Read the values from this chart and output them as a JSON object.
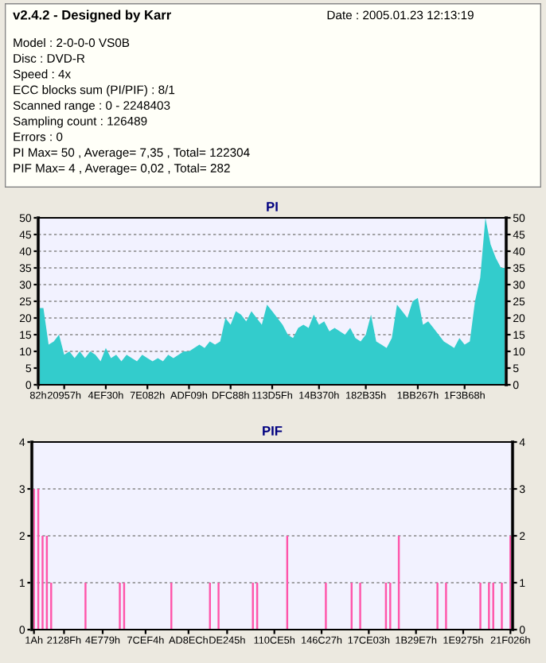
{
  "chart_data": [
    {
      "type": "other",
      "title": "v2.4.2 - Designed by Karr",
      "annotations": [
        "Date : 2005.01.23 12:13:19",
        "Model : 2-0-0-0 VS0B",
        "Disc : DVD-R",
        "Speed : 4x",
        "ECC blocks sum (PI/PIF) : 8/1",
        "Scanned range : 0 - 2248403",
        "Sampling count : 126489",
        "Errors : 0",
        "PI Max= 50 , Average= 7,35 , Total= 122304",
        "PIF Max= 4 , Average= 0,02 , Total= 282"
      ]
    },
    {
      "type": "area",
      "title": "PI",
      "color": "#33cccc",
      "grid": "y",
      "categories": [
        "82h",
        null,
        null,
        null,
        null,
        "20957h",
        null,
        null,
        null,
        null,
        null,
        null,
        null,
        "4EF30h",
        null,
        null,
        null,
        null,
        null,
        null,
        null,
        "7E082h",
        null,
        null,
        null,
        null,
        null,
        null,
        null,
        "ADF09h",
        null,
        null,
        null,
        null,
        null,
        null,
        null,
        "DFC88h",
        null,
        null,
        null,
        null,
        null,
        null,
        null,
        "113D5Fh",
        null,
        null,
        null,
        null,
        null,
        null,
        null,
        null,
        "14B370h",
        null,
        null,
        null,
        null,
        null,
        null,
        null,
        null,
        "182B35h",
        null,
        null,
        null,
        null,
        null,
        null,
        null,
        null,
        null,
        "1BB267h",
        null,
        null,
        null,
        null,
        null,
        null,
        null,
        null,
        "1F3B68h",
        null,
        null,
        null,
        null,
        null,
        null,
        null,
        null
      ],
      "values": [
        23,
        23,
        12,
        13,
        15,
        9,
        10,
        8,
        10,
        8,
        10,
        9,
        7,
        11,
        8,
        9,
        7,
        9,
        8,
        7,
        9,
        8,
        7,
        8,
        7,
        9,
        8,
        9,
        10,
        10,
        11,
        12,
        11,
        13,
        12,
        13,
        20,
        18,
        22,
        21,
        19,
        22,
        20,
        18,
        24,
        22,
        20,
        18,
        15,
        14,
        17,
        18,
        17,
        21,
        18,
        19,
        16,
        17,
        16,
        15,
        17,
        14,
        13,
        15,
        21,
        13,
        12,
        11,
        14,
        24,
        22,
        20,
        25,
        26,
        18,
        19,
        17,
        15,
        13,
        12,
        11,
        14,
        12,
        13,
        25,
        32,
        50,
        42,
        38,
        35,
        35
      ],
      "ylim": [
        0,
        50
      ],
      "y2lim": [
        0,
        50
      ],
      "yticks": [
        0,
        5,
        10,
        15,
        20,
        25,
        30,
        35,
        40,
        45,
        50
      ],
      "y2ticks": [
        0,
        5,
        10,
        15,
        20,
        25,
        30,
        35,
        40,
        45,
        50
      ]
    },
    {
      "type": "bar",
      "title": "PIF",
      "color": "#ff55aa",
      "grid": "y",
      "categories": [
        "1Ah",
        null,
        null,
        null,
        null,
        null,
        null,
        "2128Fh",
        null,
        null,
        null,
        null,
        null,
        null,
        null,
        null,
        "4E779h",
        null,
        null,
        null,
        null,
        null,
        null,
        null,
        null,
        null,
        "7CEF4h",
        null,
        null,
        null,
        null,
        null,
        null,
        null,
        null,
        null,
        "AD8ECh",
        null,
        null,
        null,
        null,
        null,
        null,
        null,
        null,
        "DE245h",
        null,
        null,
        null,
        null,
        null,
        null,
        null,
        null,
        null,
        null,
        "110CE5h",
        null,
        null,
        null,
        null,
        null,
        null,
        null,
        null,
        null,
        null,
        "146C27h",
        null,
        null,
        null,
        null,
        null,
        null,
        null,
        null,
        null,
        null,
        "17CE03h",
        null,
        null,
        null,
        null,
        null,
        null,
        null,
        null,
        null,
        null,
        "1B29E7h",
        null,
        null,
        null,
        null,
        null,
        null,
        null,
        null,
        null,
        null,
        "1E9275h",
        null,
        null,
        null,
        null,
        null,
        null,
        null,
        null,
        null,
        null,
        "21F026h"
      ],
      "values": [
        3,
        3,
        2,
        2,
        1,
        null,
        null,
        null,
        null,
        null,
        null,
        null,
        1,
        null,
        null,
        null,
        null,
        null,
        null,
        null,
        1,
        1,
        null,
        null,
        null,
        null,
        null,
        null,
        null,
        null,
        null,
        null,
        1,
        null,
        null,
        null,
        null,
        null,
        null,
        null,
        null,
        1,
        null,
        1,
        null,
        null,
        null,
        null,
        null,
        null,
        null,
        1,
        1,
        null,
        null,
        null,
        null,
        null,
        null,
        2,
        null,
        null,
        null,
        null,
        null,
        null,
        null,
        null,
        1,
        null,
        null,
        null,
        null,
        null,
        1,
        null,
        1,
        null,
        null,
        null,
        null,
        null,
        1,
        1,
        null,
        2,
        null,
        null,
        null,
        null,
        null,
        null,
        null,
        null,
        1,
        null,
        1,
        null,
        null,
        null,
        null,
        null,
        null,
        null,
        1,
        null,
        1,
        1,
        null,
        1,
        null,
        2
      ],
      "ylim": [
        0,
        4
      ],
      "y2lim": [
        0,
        4
      ],
      "yticks": [
        0,
        1,
        2,
        3,
        4
      ],
      "y2ticks": [
        0,
        1,
        2,
        3,
        4
      ]
    }
  ]
}
